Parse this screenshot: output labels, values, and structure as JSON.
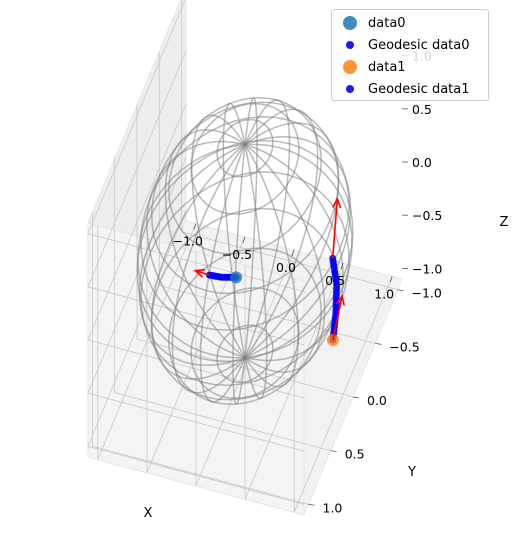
{
  "chart_data": {
    "type": "scatter",
    "projection": "3d",
    "title": "",
    "xlabel": "X",
    "ylabel": "Y",
    "zlabel": "Z",
    "xlim": [
      -1.1,
      1.1
    ],
    "ylim": [
      -1.1,
      1.1
    ],
    "zlim": [
      -1.1,
      1.1
    ],
    "xticks": [
      "−1.0",
      "−0.5",
      "0.0",
      "0.5",
      "1.0"
    ],
    "yticks": [
      "−1.0",
      "−0.5",
      "0.0",
      "0.5",
      "1.0"
    ],
    "zticks": [
      "−1.0",
      "−0.5",
      "0.0",
      "0.5",
      "1.0"
    ],
    "grid": true,
    "legend_position": "top-right",
    "background": {
      "type": "unit-sphere-wireframe",
      "color": "#808080"
    },
    "series": [
      {
        "name": "data0",
        "kind": "point",
        "color": "#1f77b4",
        "points": [
          [
            0.25,
            0.75,
            0.57
          ]
        ]
      },
      {
        "name": "Geodesic data0",
        "kind": "geodesic",
        "color": "#0000ff",
        "points": [
          [
            0.25,
            0.75,
            0.57
          ],
          [
            0.12,
            0.79,
            0.58
          ],
          [
            0.0,
            0.8,
            0.58
          ]
        ]
      },
      {
        "name": "data1",
        "kind": "point",
        "color": "#ff7f0e",
        "points": [
          [
            0.95,
            0.12,
            -0.48
          ]
        ]
      },
      {
        "name": "Geodesic data1",
        "kind": "geodesic",
        "color": "#0000ff",
        "points": [
          [
            0.95,
            0.12,
            -0.48
          ],
          [
            0.97,
            0.1,
            -0.25
          ],
          [
            0.97,
            0.08,
            0.0
          ],
          [
            0.92,
            0.06,
            0.22
          ]
        ]
      }
    ],
    "arrows": [
      {
        "color": "#ff0000",
        "from": [
          0.0,
          0.8,
          0.58
        ],
        "to": [
          -0.13,
          0.83,
          0.62
        ]
      },
      {
        "color": "#ff0000",
        "from": [
          0.92,
          0.06,
          0.22
        ],
        "to": [
          0.85,
          -0.2,
          0.5
        ]
      },
      {
        "color": "#ff0000",
        "from": [
          0.95,
          0.12,
          -0.48
        ],
        "to": [
          0.98,
          -0.02,
          -0.2
        ]
      }
    ]
  }
}
